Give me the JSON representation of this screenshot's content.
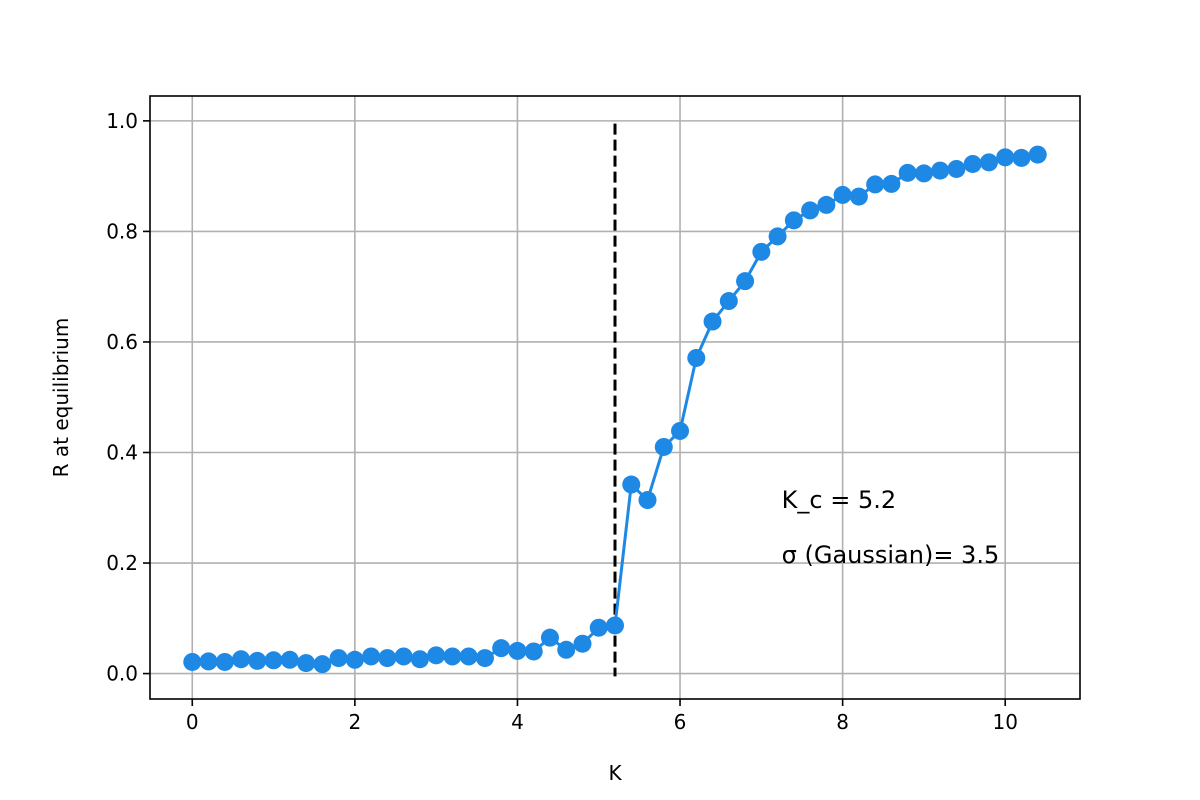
{
  "chart_data": {
    "type": "line",
    "title": "",
    "xlabel": "K",
    "ylabel": "R at equilibrium",
    "xlim": [
      -0.52,
      10.92
    ],
    "ylim": [
      -0.046,
      1.045
    ],
    "xticks": [
      0,
      2,
      4,
      6,
      8,
      10
    ],
    "yticks": [
      0.0,
      0.2,
      0.4,
      0.6,
      0.8,
      1.0
    ],
    "xtick_labels": [
      "0",
      "2",
      "4",
      "6",
      "8",
      "10"
    ],
    "ytick_labels": [
      "0.0",
      "0.2",
      "0.4",
      "0.6",
      "0.8",
      "1.0"
    ],
    "grid": true,
    "series": [
      {
        "color": "#1E88E5",
        "marker": "circle",
        "x": [
          0.0,
          0.2,
          0.4,
          0.6,
          0.8,
          1.0,
          1.2,
          1.4,
          1.6,
          1.8,
          2.0,
          2.2,
          2.4,
          2.6,
          2.8,
          3.0,
          3.2,
          3.4,
          3.6,
          3.8,
          4.0,
          4.2,
          4.4,
          4.6,
          4.8,
          5.0,
          5.2,
          5.4,
          5.6,
          5.8,
          6.0,
          6.2,
          6.4,
          6.6,
          6.8,
          7.0,
          7.2,
          7.4,
          7.6,
          7.8,
          8.0,
          8.2,
          8.4,
          8.6,
          8.8,
          9.0,
          9.2,
          9.4,
          9.6,
          9.8,
          10.0,
          10.2,
          10.4
        ],
        "y": [
          0.021,
          0.022,
          0.021,
          0.026,
          0.023,
          0.024,
          0.025,
          0.019,
          0.017,
          0.028,
          0.025,
          0.031,
          0.028,
          0.031,
          0.026,
          0.033,
          0.031,
          0.031,
          0.028,
          0.046,
          0.041,
          0.04,
          0.065,
          0.043,
          0.054,
          0.083,
          0.087,
          0.342,
          0.314,
          0.41,
          0.439,
          0.571,
          0.637,
          0.674,
          0.71,
          0.763,
          0.791,
          0.82,
          0.838,
          0.848,
          0.866,
          0.863,
          0.885,
          0.886,
          0.906,
          0.905,
          0.91,
          0.913,
          0.922,
          0.925,
          0.934,
          0.933,
          0.939
        ]
      }
    ],
    "vline": {
      "x": 5.2,
      "y_range": [
        -0.005,
        0.995
      ],
      "style": "dashed",
      "color": "#000000"
    },
    "annotations": [
      {
        "text": "K_c = 5.2",
        "x": 7.25,
        "y": 0.3
      },
      {
        "text": "σ (Gaussian)= 3.5",
        "x": 7.25,
        "y": 0.2
      }
    ]
  }
}
